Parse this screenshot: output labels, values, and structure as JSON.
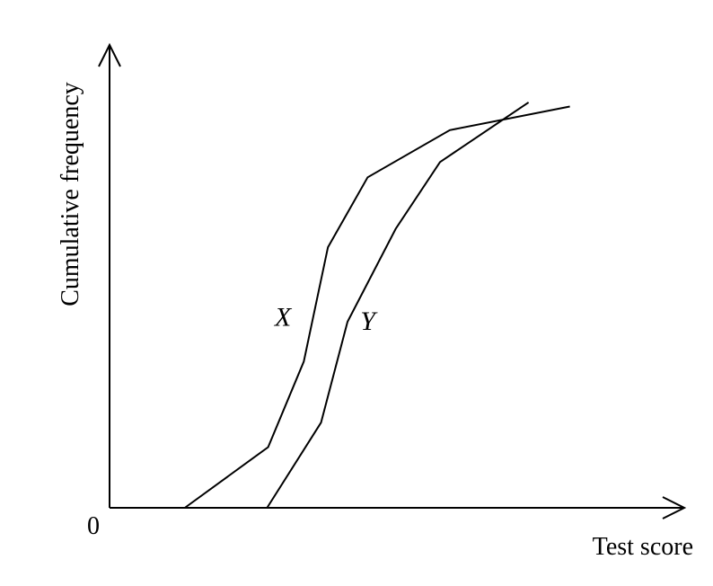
{
  "chart_data": {
    "type": "line",
    "title": "",
    "xlabel": "Test score",
    "ylabel": "Cumulative frequency",
    "origin_label": "0",
    "xlim": [
      0,
      100
    ],
    "ylim": [
      0,
      100
    ],
    "grid": false,
    "legend": "none",
    "line_color": "#000000",
    "series": [
      {
        "name": "X",
        "points": [
          [
            13.1,
            0
          ],
          [
            27.6,
            13.1
          ],
          [
            33.8,
            31.6
          ],
          [
            38.0,
            56.3
          ],
          [
            44.9,
            71.4
          ],
          [
            59.2,
            81.6
          ],
          [
            80.1,
            86.7
          ]
        ]
      },
      {
        "name": "Y",
        "points": [
          [
            27.4,
            0
          ],
          [
            36.8,
            18.4
          ],
          [
            41.4,
            40.2
          ],
          [
            49.8,
            60.3
          ],
          [
            57.5,
            74.7
          ],
          [
            72.9,
            87.6
          ]
        ]
      }
    ]
  }
}
